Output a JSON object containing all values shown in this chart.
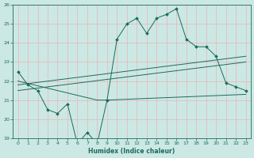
{
  "xlabel": "Humidex (Indice chaleur)",
  "x_values": [
    0,
    1,
    2,
    3,
    4,
    5,
    6,
    7,
    8,
    9,
    10,
    11,
    12,
    13,
    14,
    15,
    16,
    17,
    18,
    19,
    20,
    21,
    22,
    23
  ],
  "curve_line": [
    22.5,
    21.8,
    21.5,
    20.5,
    20.3,
    20.8,
    18.7,
    19.3,
    18.7,
    21.0,
    24.2,
    25.0,
    25.3,
    24.5,
    25.3,
    25.5,
    25.8,
    24.2,
    23.8,
    23.8,
    23.3,
    21.9,
    21.7,
    21.5
  ],
  "trend_line1_x": [
    0,
    23
  ],
  "trend_line1_y": [
    21.8,
    23.3
  ],
  "trend_line2_x": [
    0,
    23
  ],
  "trend_line2_y": [
    21.5,
    23.0
  ],
  "flat_line_x": [
    0,
    8,
    9,
    23
  ],
  "flat_line_y": [
    22.0,
    21.0,
    21.0,
    21.3
  ],
  "ylim": [
    19,
    26
  ],
  "xlim": [
    -0.5,
    23.5
  ],
  "yticks": [
    19,
    20,
    21,
    22,
    23,
    24,
    25,
    26
  ],
  "xticks": [
    0,
    1,
    2,
    3,
    4,
    5,
    6,
    7,
    8,
    9,
    10,
    11,
    12,
    13,
    14,
    15,
    16,
    17,
    18,
    19,
    20,
    21,
    22,
    23
  ],
  "bg_color": "#cce8e4",
  "grid_color": "#e8b4b4",
  "line_color": "#1a6b5a",
  "tick_color": "#1a6b5a"
}
